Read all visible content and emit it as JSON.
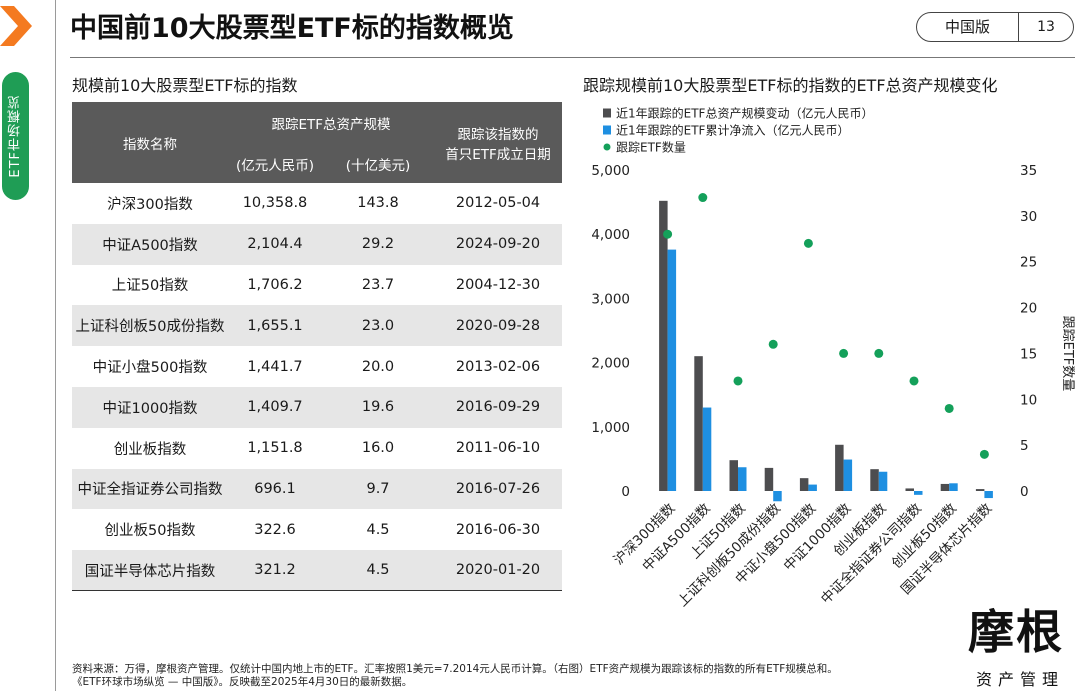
{
  "page": {
    "title": "中国前10大股票型ETF标的指数概览",
    "badge_label": "中国版",
    "page_number": "13",
    "side_tab": "ETF市场概览"
  },
  "table": {
    "title": "规模前10大股票型ETF标的指数",
    "head_name": "指数名称",
    "head_aum": "跟踪ETF总资产规模",
    "head_cny": "(亿元人民币)",
    "head_usd": "(十亿美元)",
    "head_date_1": "跟踪该指数的",
    "head_date_2": "首只ETF成立日期",
    "rows": [
      {
        "name": "沪深300指数",
        "cny": "10,358.8",
        "usd": "143.8",
        "date": "2012-05-04"
      },
      {
        "name": "中证A500指数",
        "cny": "2,104.4",
        "usd": "29.2",
        "date": "2024-09-20"
      },
      {
        "name": "上证50指数",
        "cny": "1,706.2",
        "usd": "23.7",
        "date": "2004-12-30"
      },
      {
        "name": "上证科创板50成份指数",
        "cny": "1,655.1",
        "usd": "23.0",
        "date": "2020-09-28"
      },
      {
        "name": "中证小盘500指数",
        "cny": "1,441.7",
        "usd": "20.0",
        "date": "2013-02-06"
      },
      {
        "name": "中证1000指数",
        "cny": "1,409.7",
        "usd": "19.6",
        "date": "2016-09-29"
      },
      {
        "name": "创业板指数",
        "cny": "1,151.8",
        "usd": "16.0",
        "date": "2011-06-10"
      },
      {
        "name": "中证全指证券公司指数",
        "cny": "696.1",
        "usd": "9.7",
        "date": "2016-07-26"
      },
      {
        "name": "创业板50指数",
        "cny": "322.6",
        "usd": "4.5",
        "date": "2016-06-30"
      },
      {
        "name": "国证半导体芯片指数",
        "cny": "321.2",
        "usd": "4.5",
        "date": "2020-01-20"
      }
    ]
  },
  "chart_data": {
    "type": "bar",
    "title": "跟踪规模前10大股票型ETF标的指数的ETF总资产规模变化",
    "categories": [
      "沪深300指数",
      "中证A500指数",
      "上证50指数",
      "上证科创板50成份指数",
      "中证小盘500指数",
      "中证1000指数",
      "创业板指数",
      "中证全指证券公司指数",
      "创业板50指数",
      "国证半导体芯片指数"
    ],
    "series": [
      {
        "name": "近1年跟踪的ETF总资产规模变动（亿元人民币）",
        "type": "bar",
        "axis": "left",
        "color": "#4d4d4f",
        "values": [
          4520,
          2100,
          480,
          360,
          200,
          720,
          340,
          40,
          110,
          30
        ]
      },
      {
        "name": "近1年跟踪的ETF累计净流入（亿元人民币）",
        "type": "bar",
        "axis": "left",
        "color": "#1e8fe1",
        "values": [
          3760,
          1300,
          370,
          -160,
          100,
          490,
          300,
          -60,
          120,
          -110
        ]
      },
      {
        "name": "跟踪ETF数量",
        "type": "scatter",
        "axis": "right",
        "color": "#14a05a",
        "values": [
          28,
          32,
          12,
          16,
          27,
          15,
          15,
          12,
          9,
          4
        ]
      }
    ],
    "ylim": [
      0,
      5000
    ],
    "y_ticks": [
      "5,000",
      "4,000",
      "3,000",
      "2,000",
      "1,000",
      "0"
    ],
    "y2lim": [
      0,
      35
    ],
    "y2_ticks": [
      "35",
      "30",
      "25",
      "20",
      "15",
      "10",
      "5",
      "0"
    ],
    "y2label": "跟踪ETF数量",
    "legend_position": "top-left",
    "grid": false
  },
  "footer": {
    "line1": "资料来源：万得，摩根资产管理。仅统计中国内地上市的ETF。汇率按照1美元=7.2014元人民币计算。（右图）ETF资产规模为跟踪该标的指数的所有ETF规模总和。",
    "line2": "《ETF环球市场纵览 — 中国版》。反映截至2025年4月30日的最新数据。"
  },
  "logo": {
    "main": "摩根",
    "sub": "资产管理"
  },
  "colors": {
    "accent_orange": "#f47a20",
    "accent_green": "#1f9d55",
    "table_header": "#5a5a5a"
  }
}
